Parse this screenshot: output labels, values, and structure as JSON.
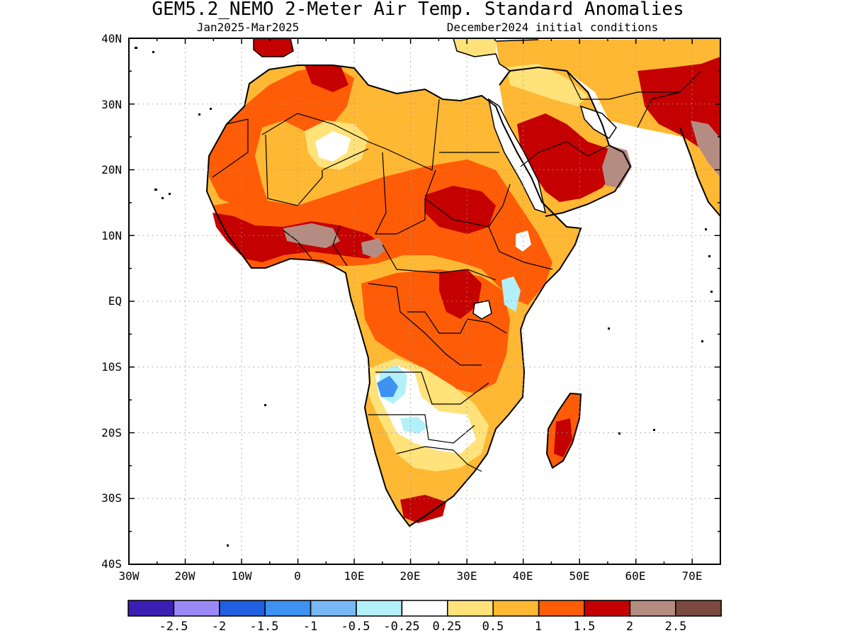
{
  "title": "GEM5.2_NEMO 2-Meter Air Temp. Standard Anomalies",
  "subtitle_left": "Jan2025-Mar2025",
  "subtitle_right": "December2024 initial conditions",
  "map": {
    "lat_labels": [
      "40N",
      "30N",
      "20N",
      "10N",
      "EQ",
      "10S",
      "20S",
      "30S",
      "40S"
    ],
    "lon_labels": [
      "30W",
      "20W",
      "10W",
      "0",
      "10E",
      "20E",
      "30E",
      "40E",
      "50E",
      "60E",
      "70E"
    ],
    "lat_range": [
      -40,
      40
    ],
    "lon_range": [
      -30,
      75
    ],
    "grid": "dotted"
  },
  "colorbar": {
    "colors": [
      "#3a1fb5",
      "#9b8af5",
      "#1f5fe0",
      "#3d92f2",
      "#78b8f5",
      "#b3f0fa",
      "#ffffff",
      "#ffe27a",
      "#ffb833",
      "#ff5c08",
      "#c40000",
      "#b58c82",
      "#7a4a40"
    ],
    "labels": [
      "-2.5",
      "-2",
      "-1.5",
      "-1",
      "-0.5",
      "-0.25",
      "0.25",
      "0.5",
      "1",
      "1.5",
      "2",
      "2.5"
    ]
  }
}
